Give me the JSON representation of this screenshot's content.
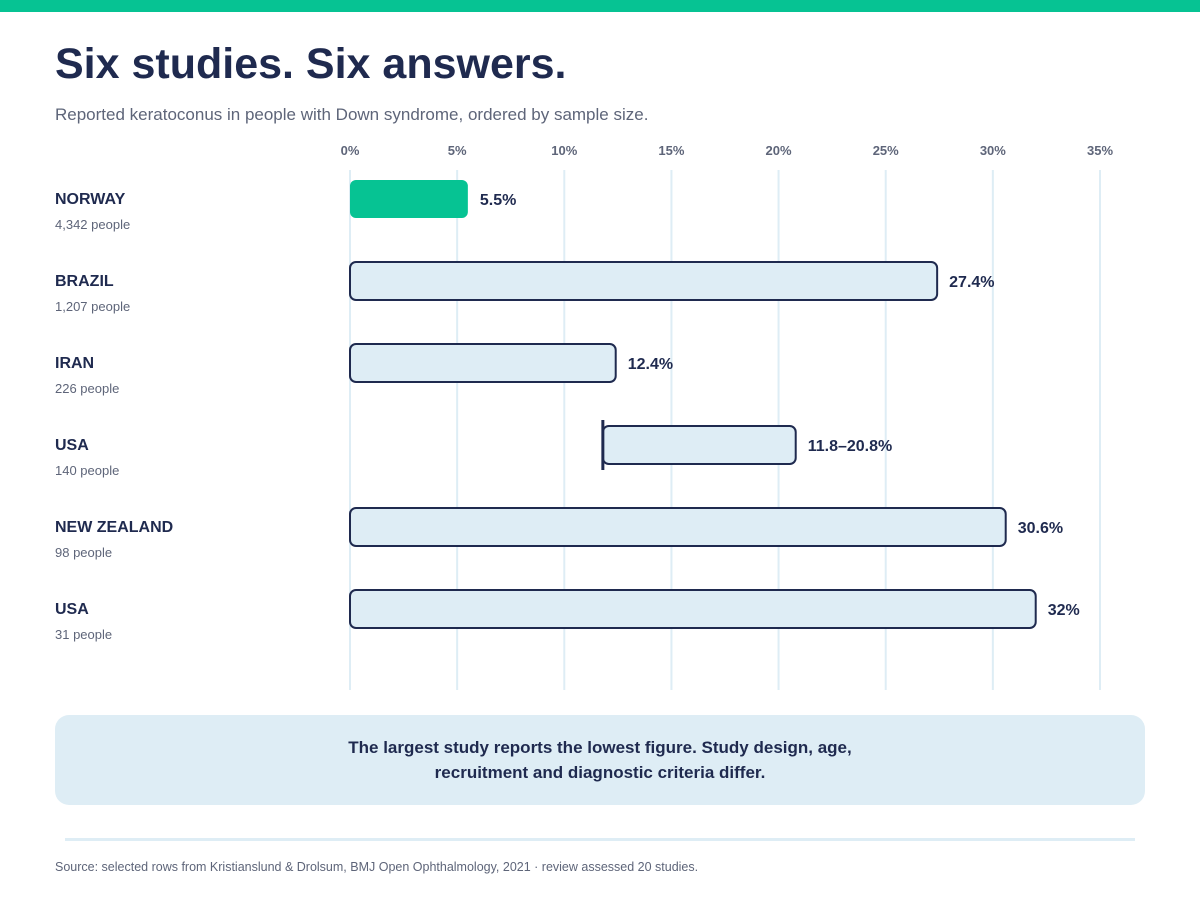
{
  "header": {
    "title": "Six studies. Six answers.",
    "subtitle": "Reported keratoconus in people with Down syndrome, ordered by sample size."
  },
  "colors": {
    "accent": "#06c393",
    "navy": "#1f2a4f",
    "bar_fill": "#deedf5",
    "grid": "#deedf5",
    "muted_text": "#5e6579"
  },
  "chart_data": {
    "type": "bar",
    "orientation": "horizontal",
    "title": "Six studies. Six answers.",
    "subtitle": "Reported keratoconus in people with Down syndrome, ordered by sample size.",
    "xlabel": "",
    "ylabel": "",
    "xlim": [
      0,
      35
    ],
    "x_ticks": [
      {
        "value": 0,
        "label": "0%"
      },
      {
        "value": 5,
        "label": "5%"
      },
      {
        "value": 10,
        "label": "10%"
      },
      {
        "value": 15,
        "label": "15%"
      },
      {
        "value": 20,
        "label": "20%"
      },
      {
        "value": 25,
        "label": "25%"
      },
      {
        "value": 30,
        "label": "30%"
      },
      {
        "value": 35,
        "label": "35%"
      }
    ],
    "grid": true,
    "legend": "none",
    "rows": [
      {
        "country": "NORWAY",
        "sample": "4,342 people",
        "start": 0,
        "end": 5.5,
        "label": "5.5%",
        "highlight": true
      },
      {
        "country": "BRAZIL",
        "sample": "1,207 people",
        "start": 0,
        "end": 27.4,
        "label": "27.4%",
        "highlight": false
      },
      {
        "country": "IRAN",
        "sample": "226 people",
        "start": 0,
        "end": 12.4,
        "label": "12.4%",
        "highlight": false
      },
      {
        "country": "USA",
        "sample": "140 people",
        "start": 11.8,
        "end": 20.8,
        "label": "11.8–20.8%",
        "highlight": false,
        "range": true
      },
      {
        "country": "NEW ZEALAND",
        "sample": "98 people",
        "start": 0,
        "end": 30.6,
        "label": "30.6%",
        "highlight": false
      },
      {
        "country": "USA",
        "sample": "31 people",
        "start": 0,
        "end": 32,
        "label": "32%",
        "highlight": false
      }
    ]
  },
  "callout": {
    "line1": "The largest study reports the lowest figure. Study design, age,",
    "line2": "recruitment and diagnostic criteria differ."
  },
  "footer": {
    "source": "Source: selected rows from Kristianslund & Drolsum, BMJ Open Ophthalmology, 2021 · review assessed 20 studies."
  }
}
